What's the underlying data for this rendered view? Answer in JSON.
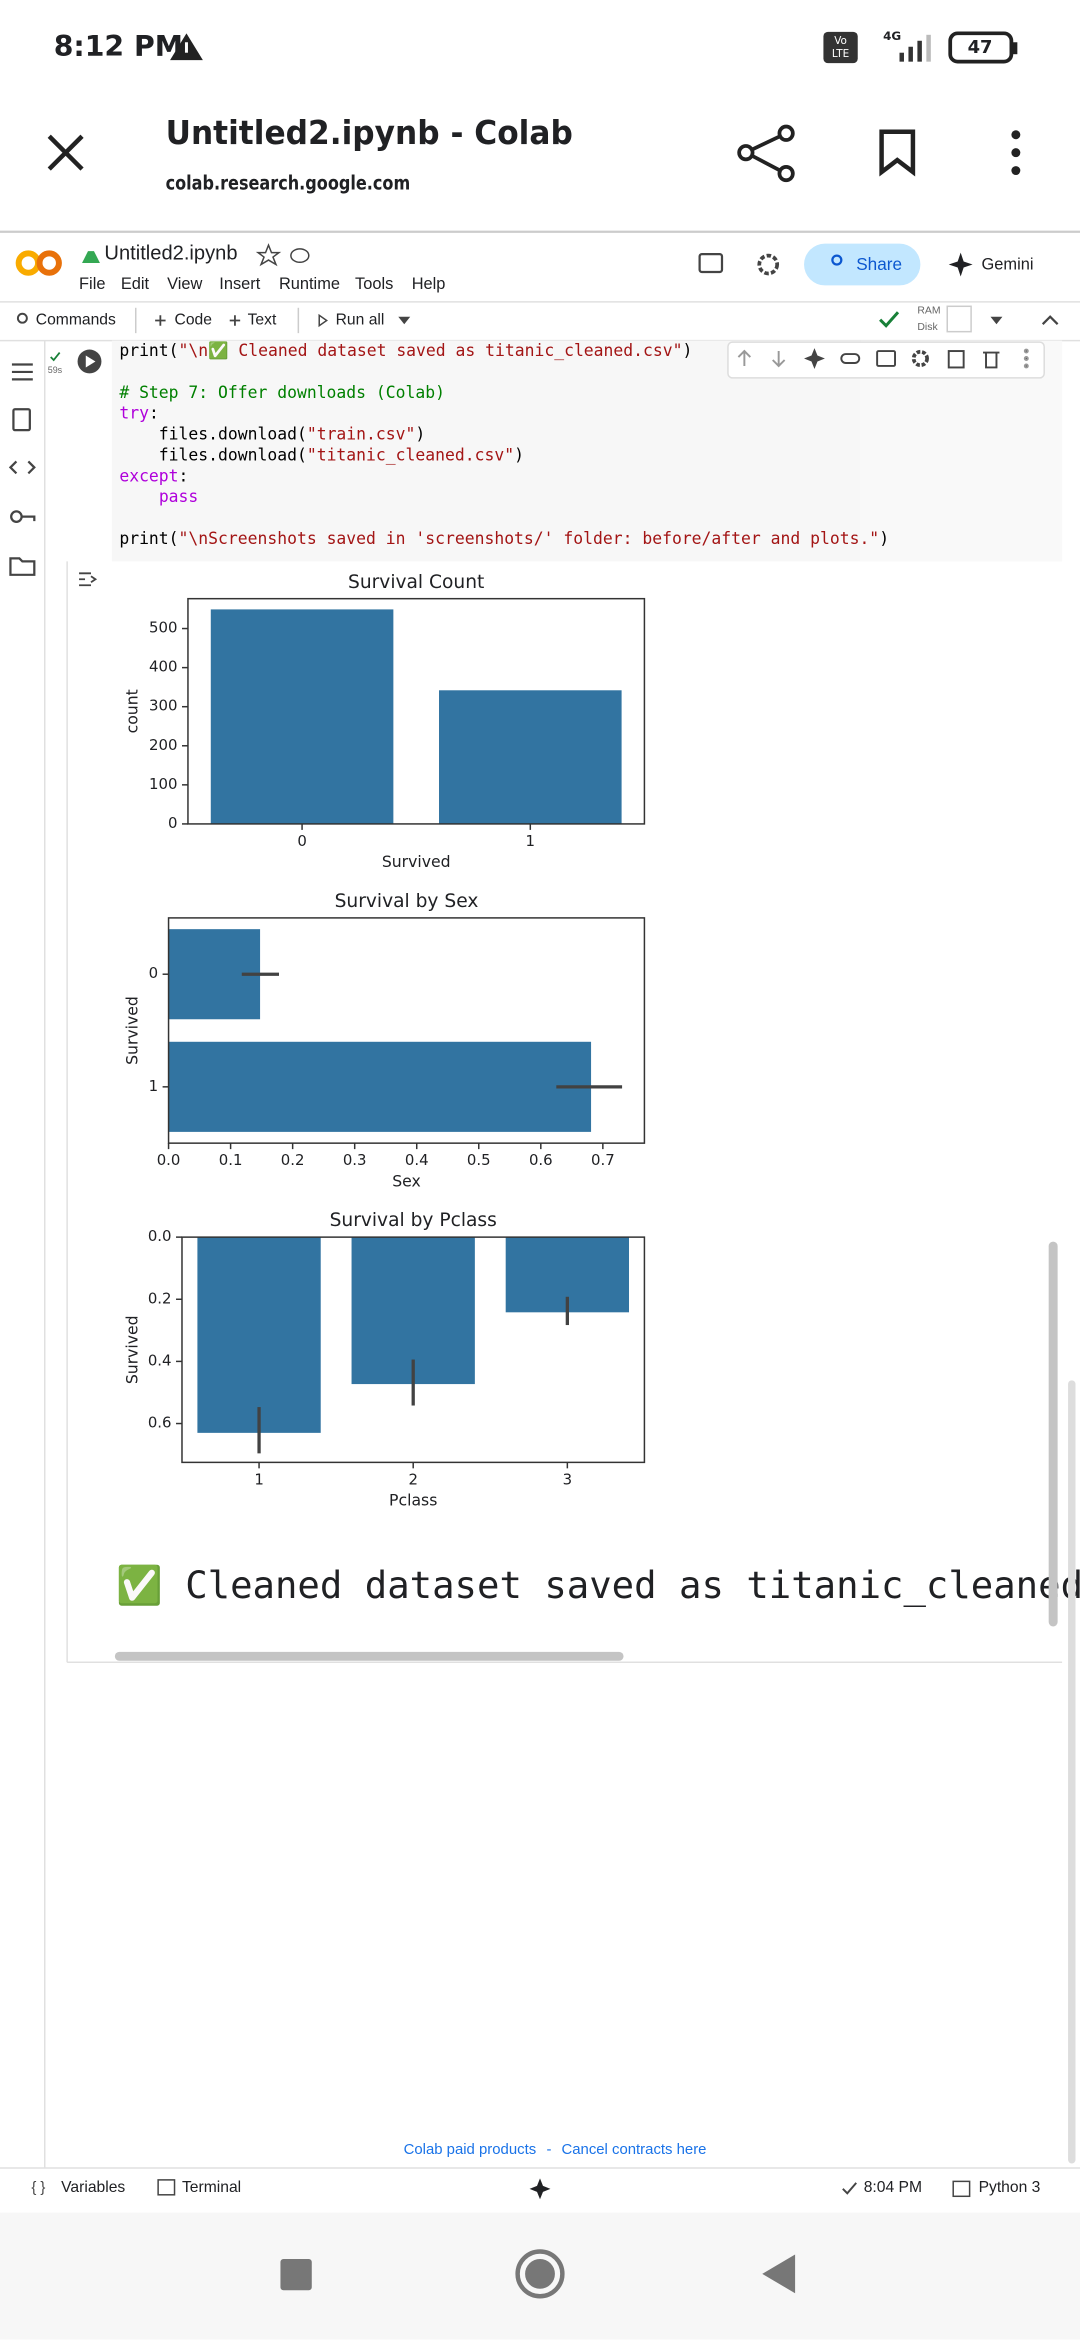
{
  "status_bar": {
    "time": "8:12 PM",
    "network_badge": [
      "Vo",
      "LTE"
    ],
    "network": "4G",
    "battery": "47"
  },
  "browser": {
    "title": "Untitled2.ipynb  -  Colab",
    "url": "colab.research.google.com"
  },
  "colab": {
    "notebook_name": "Untitled2.ipynb",
    "menu": [
      "File",
      "Edit",
      "View",
      "Insert",
      "Runtime",
      "Tools",
      "Help"
    ],
    "share": "Share",
    "gemini": "Gemini",
    "toolbar": {
      "commands": "Commands",
      "code": "Code",
      "text": "Text",
      "run_all": "Run all",
      "ram": "RAM",
      "disk": "Disk"
    }
  },
  "cell": {
    "exec_time": "59s",
    "code": [
      [
        "print(\"\\n✅ Cleaned dataset saved as titanic_cleaned.csv\")"
      ],
      [
        "# Step 7: Offer downloads (Colab)",
        "try:",
        "    files.download(\"train.csv\")",
        "    files.download(\"titanic_cleaned.csv\")",
        "except:",
        "    pass"
      ],
      [
        "print(\"\\nScreenshots saved in 'screenshots/' folder: before/after and plots.\")"
      ]
    ]
  },
  "chart_data": [
    {
      "type": "bar",
      "title": "Survival Count",
      "x_label": "Survived",
      "y_label": "count",
      "categories": [
        "0",
        "1"
      ],
      "values": [
        549,
        342
      ],
      "color": "#3274a1",
      "ylim": [
        0,
        576.45
      ],
      "yticks": [
        0,
        100,
        200,
        300,
        400,
        500
      ]
    },
    {
      "type": "barh",
      "title": "Survival by Sex",
      "x_label": "Sex",
      "y_label": "Survived",
      "categories": [
        "0",
        "1"
      ],
      "values": [
        0.1475,
        0.681
      ],
      "ci_low": [
        0.118,
        0.625
      ],
      "ci_high": [
        0.178,
        0.731
      ],
      "color": "#3274a1",
      "error_color": "#424242",
      "xlim": [
        0,
        0.767
      ],
      "xticks": [
        {
          "value": 0,
          "label": "0.0"
        },
        {
          "value": 0.1,
          "label": "0.1"
        },
        {
          "value": 0.2,
          "label": "0.2"
        },
        {
          "value": 0.3,
          "label": "0.3"
        },
        {
          "value": 0.4,
          "label": "0.4"
        },
        {
          "value": 0.5,
          "label": "0.5"
        },
        {
          "value": 0.6,
          "label": "0.6"
        },
        {
          "value": 0.7,
          "label": "0.7"
        }
      ]
    },
    {
      "type": "bar",
      "title": "Survival by Pclass",
      "x_label": "Pclass",
      "y_label": "Survived",
      "categories": [
        "1",
        "2",
        "3"
      ],
      "values": [
        0.63,
        0.473,
        0.242
      ],
      "ci_low": [
        0.547,
        0.394,
        0.192
      ],
      "ci_high": [
        0.696,
        0.542,
        0.283
      ],
      "color": "#3274a1",
      "error_color": "#424242",
      "ylim": [
        0.725,
        0
      ],
      "yticks": [
        {
          "value": 0,
          "label": "0.0"
        },
        {
          "value": 0.2,
          "label": "0.2"
        },
        {
          "value": 0.4,
          "label": "0.4"
        },
        {
          "value": 0.6,
          "label": "0.6"
        }
      ]
    }
  ],
  "output": {
    "message": "✅ Cleaned dataset saved as titanic_cleaned"
  },
  "footer": {
    "paid_products": "Colab paid products",
    "separator": "-",
    "cancel_contracts": "Cancel contracts here"
  },
  "status": {
    "variables": "Variables",
    "terminal": "Terminal",
    "time": "8:04 PM",
    "runtime": "Python 3"
  }
}
